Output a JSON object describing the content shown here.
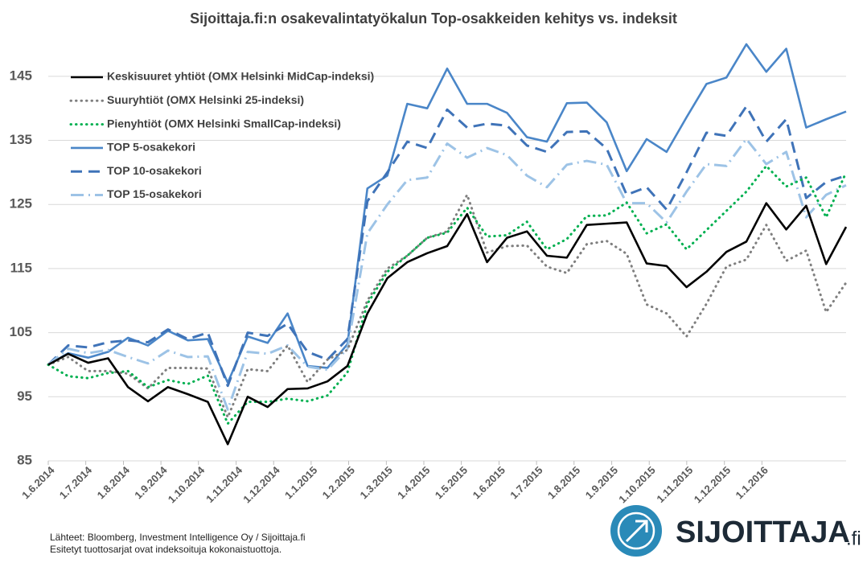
{
  "chart_data": {
    "type": "line",
    "title": "Sijoittaja.fi:n osakevalintatyökalun Top-osakkeiden kehitys vs. indeksit",
    "x": [
      0,
      1,
      2,
      3,
      4,
      5,
      6,
      7,
      8,
      9,
      10,
      11,
      12,
      13,
      14,
      15,
      16,
      17,
      18,
      19,
      20,
      21,
      22,
      23,
      24,
      25,
      26,
      27,
      28,
      29,
      30,
      31,
      32,
      33,
      34,
      35,
      36,
      37,
      38,
      39,
      40
    ],
    "xlim": [
      0,
      40
    ],
    "xticks": [
      {
        "value": 0,
        "label": "1.6.2014"
      },
      {
        "value": 1.88,
        "label": "1.7.2014"
      },
      {
        "value": 3.77,
        "label": "1.8.2014"
      },
      {
        "value": 5.65,
        "label": "1.9.2014"
      },
      {
        "value": 7.53,
        "label": "1.10.2014"
      },
      {
        "value": 9.42,
        "label": "1.11.2014"
      },
      {
        "value": 11.3,
        "label": "1.12.2014"
      },
      {
        "value": 13.18,
        "label": "1.1.2015"
      },
      {
        "value": 15.06,
        "label": "1.2.2015"
      },
      {
        "value": 16.95,
        "label": "1.3.2015"
      },
      {
        "value": 18.83,
        "label": "1.4.2015"
      },
      {
        "value": 20.71,
        "label": "1.5.2015"
      },
      {
        "value": 22.6,
        "label": "1.6.2015"
      },
      {
        "value": 24.48,
        "label": "1.7.2015"
      },
      {
        "value": 26.36,
        "label": "1.8.2015"
      },
      {
        "value": 28.25,
        "label": "1.9.2015"
      },
      {
        "value": 30.13,
        "label": "1.10.2015"
      },
      {
        "value": 32.01,
        "label": "1.11.2015"
      },
      {
        "value": 33.9,
        "label": "1.12.2015"
      },
      {
        "value": 35.78,
        "label": "1.1.2016"
      }
    ],
    "ylim": [
      85,
      150
    ],
    "yticks": [
      85,
      95,
      105,
      115,
      125,
      135,
      145
    ],
    "grid": true,
    "legend": "upper-left",
    "series": [
      {
        "name": "Keskisuuret yhtiöt (OMX Helsinki MidCap-indeksi)",
        "color": "#000000",
        "style": "solid",
        "values": [
          100,
          101.7,
          100.3,
          101,
          96.5,
          94.3,
          96.5,
          95.4,
          94.2,
          87.6,
          95,
          93.4,
          96.2,
          96.3,
          97.4,
          99.8,
          108,
          113.5,
          116,
          117.4,
          118.5,
          123.5,
          116,
          119.8,
          120.8,
          117,
          116.7,
          121.8,
          122,
          122.2,
          115.8,
          115.4,
          112.1,
          114.5,
          117.6,
          119.2,
          125.2,
          121.1,
          124.8,
          115.7,
          121.5
        ]
      },
      {
        "name": "Suuryhtiöt (OMX Helsinki 25-indeksi)",
        "color": "#7f7f7f",
        "style": "dotted",
        "values": [
          100,
          101.2,
          99,
          99,
          98.6,
          96.3,
          99.5,
          99.5,
          99.4,
          91.8,
          99.3,
          99,
          103,
          97.3,
          100.8,
          102.3,
          110,
          115,
          117,
          119.8,
          120.8,
          126.5,
          117.5,
          118.5,
          118.6,
          115.3,
          114.3,
          118.8,
          119.3,
          117.3,
          109.4,
          108,
          104.4,
          109.5,
          115.3,
          116.4,
          121.8,
          116.2,
          117.8,
          108.2,
          112.8
        ]
      },
      {
        "name": "Pienyhtiöt (OMX Helsinki SmallCap-indeksi)",
        "color": "#00b050",
        "style": "dotted",
        "values": [
          100,
          98.2,
          97.9,
          98.7,
          99,
          96.5,
          97.6,
          97,
          98.3,
          90.8,
          94.2,
          94.2,
          94.7,
          94.3,
          95.2,
          98.8,
          109.5,
          114.5,
          117,
          119.8,
          120.6,
          124.5,
          120,
          120.2,
          122.3,
          118,
          119.6,
          123.2,
          123.3,
          125.3,
          120.5,
          121.9,
          118,
          121,
          124,
          127,
          131,
          127.8,
          129.2,
          123,
          130
        ]
      },
      {
        "name": "TOP 5-osakekori",
        "color": "#4a86c8",
        "style": "solid",
        "values": [
          100,
          101.8,
          101.1,
          102,
          104.2,
          103,
          105.3,
          103.8,
          104,
          97.2,
          104.4,
          103.4,
          108,
          99.8,
          99.5,
          103.2,
          127.5,
          129.5,
          140.7,
          140,
          146.2,
          140.7,
          140.7,
          139.3,
          135.5,
          134.8,
          140.8,
          140.9,
          137.8,
          130.2,
          135.2,
          133.2,
          138.6,
          143.8,
          144.8,
          150,
          145.7,
          149.3,
          137,
          138.3,
          139.5
        ]
      },
      {
        "name": "TOP 10-osakekori",
        "color": "#3f73b8",
        "style": "dashed",
        "values": [
          100,
          103,
          102.7,
          103.5,
          103.8,
          103.5,
          105.5,
          104,
          105,
          96.7,
          105,
          104.5,
          106.4,
          102,
          100.8,
          104,
          125.5,
          130,
          134.8,
          133.8,
          139.8,
          137,
          137.6,
          137.3,
          134.2,
          133.2,
          136.3,
          136.4,
          133.7,
          126.5,
          127.7,
          124.2,
          130,
          136.2,
          135.7,
          140.3,
          134.8,
          138.3,
          126,
          128.5,
          129.5
        ]
      },
      {
        "name": "TOP 15-osakekori",
        "color": "#9dc3e6",
        "style": "dashdot",
        "values": [
          100,
          102.5,
          101.8,
          102.3,
          101.2,
          100.2,
          102.2,
          101.2,
          101.3,
          93,
          102,
          101.7,
          103,
          99.7,
          99.2,
          102.5,
          120.5,
          125,
          128.8,
          129.2,
          134.5,
          132.3,
          133.8,
          132.7,
          129.5,
          127.7,
          131.2,
          131.8,
          131.2,
          125.2,
          125.2,
          122.2,
          127,
          131.3,
          131,
          135.2,
          131.3,
          133.2,
          123,
          126.5,
          128
        ]
      }
    ],
    "notes": [
      "Lähteet: Bloomberg, Investment Intelligence Oy / Sijoittaja.fi",
      "Esitetyt tuottosarjat ovat indeksoituja kokonaistuottoja."
    ],
    "logo": {
      "name": "SIJOITTAJA",
      "suffix": ".fi"
    }
  }
}
